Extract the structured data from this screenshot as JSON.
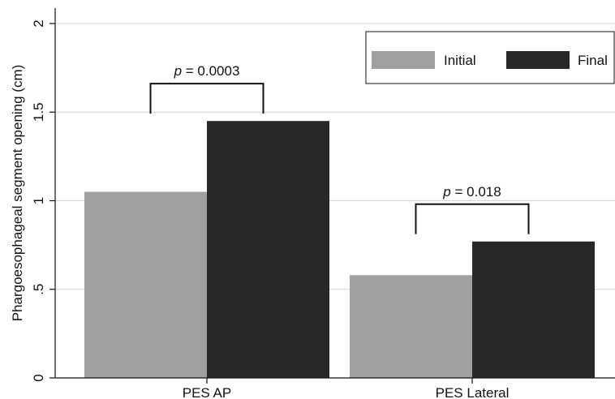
{
  "chart_data": {
    "type": "bar",
    "categories": [
      "PES AP",
      "PES Lateral"
    ],
    "series": [
      {
        "name": "Initial",
        "values": [
          1.05,
          0.58
        ],
        "color": "#a0a0a0"
      },
      {
        "name": "Final",
        "values": [
          1.45,
          0.77
        ],
        "color": "#282828"
      }
    ],
    "ylabel": "Phargoesophageal segment opening (cm)",
    "ylim": [
      0,
      2
    ],
    "yticks": [
      0,
      0.5,
      1,
      1.5,
      2
    ],
    "ytick_labels": [
      "0",
      ".5",
      "1",
      "1.5",
      "2"
    ],
    "grid": true,
    "legend_position": "top-right",
    "annotations": [
      {
        "category": "PES AP",
        "prefix": "p",
        "text": " = 0.0003"
      },
      {
        "category": "PES Lateral",
        "prefix": "p",
        "text": " = 0.018"
      }
    ]
  }
}
